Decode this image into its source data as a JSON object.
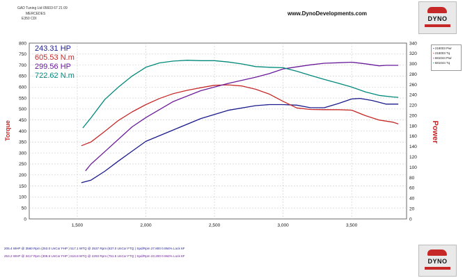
{
  "header": {
    "company": "GAD Tuning Ltd 05603 67 21 09",
    "make": "MERCEDES",
    "model": "E350 CDI",
    "website": "www.DynoDevelopments.com"
  },
  "logo": {
    "text": "DYNO"
  },
  "readouts": [
    {
      "value": "243.31 HP",
      "color": "#1a1a8c"
    },
    {
      "value": "605.53 N.m",
      "color": "#c62828"
    },
    {
      "value": "299.56 HP",
      "color": "#6a1b9a"
    },
    {
      "value": "722.62 N.m",
      "color": "#00897b"
    }
  ],
  "legend": [
    {
      "label": "218003 Pwr",
      "color": "#1a1a8c"
    },
    {
      "label": "218003 Tq",
      "color": "#c62828"
    },
    {
      "label": "681044 Pwr",
      "color": "#6a1b9a"
    },
    {
      "label": "681044 Tq",
      "color": "#00897b"
    }
  ],
  "footer": [
    {
      "text": "205.4 WHP @ 3560 Rpm (253.0 UnCor FHP ) 517.1 WTQ @ 2537 Rpm (637.0 UnCor FTQ ) Spd/Rpm 27.800 0.954% Lock 6F",
      "color": "#1a1a8c"
    },
    {
      "text": "253.2 WHP @ 3417 Rpm (308.6 UnCor FHP ) 616.8 WTQ @ 2293 Rpm (751.5 UnCor FTQ ) Spd/Rpm 23.200 0.964% Lock 6F",
      "color": "#6a1b9a"
    }
  ],
  "chart_data": {
    "type": "line",
    "xlabel": "",
    "ylabel": "Torque",
    "y2label": "Power",
    "xlim": [
      1150,
      3900
    ],
    "ylim": [
      0,
      800
    ],
    "y2lim": [
      0,
      340
    ],
    "x_ticks": [
      1500,
      2000,
      2500,
      3000,
      3500
    ],
    "x_tick_labels": [
      "1,500",
      "2,000",
      "2,500",
      "3,000",
      "3,500"
    ],
    "y_ticks": [
      0,
      50,
      100,
      150,
      200,
      250,
      300,
      350,
      400,
      450,
      500,
      550,
      600,
      650,
      700,
      750,
      800
    ],
    "y2_ticks": [
      0,
      20,
      40,
      60,
      80,
      100,
      120,
      140,
      160,
      180,
      200,
      220,
      240,
      260,
      280,
      300,
      320,
      340
    ],
    "grid": true,
    "series": [
      {
        "name": "218003 Pwr",
        "axis": "y2",
        "color": "#1a1a8c",
        "x": [
          1530,
          1600,
          1700,
          1800,
          1900,
          2000,
          2200,
          2400,
          2600,
          2800,
          2900,
          3000,
          3100,
          3200,
          3300,
          3400,
          3500,
          3560,
          3650,
          3750,
          3840
        ],
        "y": [
          70,
          75,
          92,
          112,
          131,
          150,
          172,
          194,
          210,
          219,
          221,
          221,
          220,
          215,
          215,
          223,
          232,
          233,
          229,
          222,
          222
        ]
      },
      {
        "name": "218003 Tq",
        "axis": "y",
        "color": "#c62828",
        "x": [
          1530,
          1600,
          1700,
          1800,
          1900,
          2000,
          2100,
          2200,
          2300,
          2400,
          2500,
          2600,
          2700,
          2800,
          2900,
          3000,
          3100,
          3200,
          3300,
          3400,
          3500,
          3600,
          3700,
          3800,
          3840
        ],
        "y": [
          333,
          350,
          398,
          448,
          487,
          520,
          548,
          570,
          585,
          597,
          608,
          610,
          605,
          590,
          568,
          535,
          505,
          498,
          497,
          497,
          495,
          470,
          450,
          440,
          432
        ]
      },
      {
        "name": "681044 Pwr",
        "axis": "y2",
        "color": "#6a1b9a",
        "x": [
          1560,
          1600,
          1700,
          1800,
          1900,
          2000,
          2200,
          2400,
          2600,
          2800,
          2900,
          3000,
          3100,
          3200,
          3300,
          3400,
          3500,
          3600,
          3700,
          3750,
          3840
        ],
        "y": [
          93,
          106,
          130,
          154,
          178,
          196,
          227,
          248,
          262,
          274,
          281,
          290,
          294,
          298,
          301,
          302,
          303,
          300,
          296,
          297,
          297
        ]
      },
      {
        "name": "681044 Tq",
        "axis": "y",
        "color": "#00897b",
        "x": [
          1540,
          1600,
          1700,
          1800,
          1900,
          2000,
          2100,
          2200,
          2300,
          2400,
          2500,
          2600,
          2700,
          2800,
          2900,
          3000,
          3100,
          3200,
          3300,
          3400,
          3500,
          3600,
          3700,
          3800,
          3840
        ],
        "y": [
          414,
          460,
          543,
          600,
          650,
          690,
          710,
          718,
          722,
          720,
          720,
          714,
          705,
          693,
          690,
          688,
          672,
          653,
          635,
          618,
          600,
          578,
          562,
          555,
          553
        ]
      }
    ]
  }
}
